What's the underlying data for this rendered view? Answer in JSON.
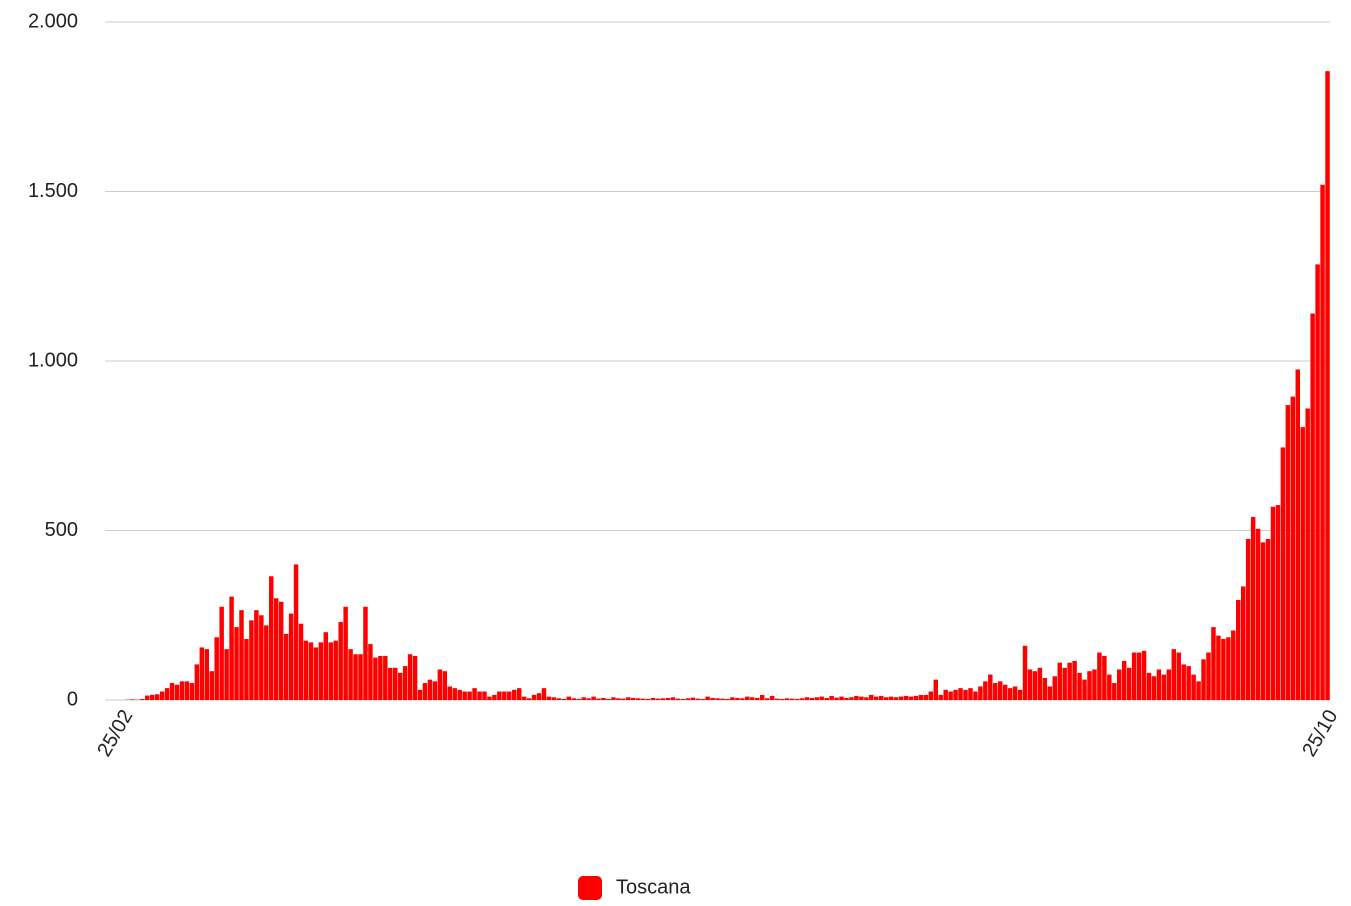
{
  "chart_data": {
    "type": "bar",
    "categories": [
      "25/02",
      null,
      null,
      null,
      null,
      null,
      null,
      null,
      null,
      null,
      null,
      null,
      null,
      null,
      null,
      null,
      null,
      null,
      null,
      null,
      null,
      null,
      null,
      null,
      null,
      null,
      null,
      null,
      null,
      null,
      null,
      null,
      null,
      null,
      null,
      null,
      null,
      null,
      null,
      null,
      null,
      null,
      null,
      null,
      null,
      null,
      null,
      null,
      null,
      null,
      null,
      null,
      null,
      null,
      null,
      null,
      null,
      null,
      null,
      null,
      null,
      null,
      null,
      null,
      null,
      null,
      null,
      null,
      null,
      null,
      null,
      null,
      null,
      null,
      null,
      null,
      null,
      null,
      null,
      null,
      null,
      null,
      null,
      null,
      null,
      null,
      null,
      null,
      null,
      null,
      null,
      null,
      null,
      null,
      null,
      null,
      null,
      null,
      null,
      null,
      null,
      null,
      null,
      null,
      null,
      null,
      null,
      null,
      null,
      null,
      null,
      null,
      null,
      null,
      null,
      null,
      null,
      null,
      null,
      null,
      null,
      null,
      null,
      null,
      null,
      null,
      null,
      null,
      null,
      null,
      null,
      null,
      null,
      null,
      null,
      null,
      null,
      null,
      null,
      null,
      null,
      null,
      null,
      null,
      null,
      null,
      null,
      null,
      null,
      null,
      null,
      null,
      null,
      null,
      null,
      null,
      null,
      null,
      null,
      null,
      null,
      null,
      null,
      null,
      null,
      null,
      null,
      null,
      null,
      null,
      null,
      null,
      null,
      null,
      null,
      null,
      null,
      null,
      null,
      null,
      null,
      null,
      null,
      null,
      null,
      null,
      null,
      null,
      null,
      null,
      null,
      null,
      null,
      null,
      null,
      null,
      null,
      null,
      null,
      null,
      null,
      null,
      null,
      null,
      null,
      null,
      null,
      null,
      null,
      null,
      null,
      null,
      null,
      null,
      null,
      null,
      null,
      null,
      null,
      null,
      null,
      null,
      null,
      null,
      null,
      null,
      null,
      null,
      null,
      null,
      null,
      null,
      null,
      null,
      null,
      null,
      null,
      null,
      null,
      null,
      null,
      null,
      null,
      "25/10"
    ],
    "series": [
      {
        "name": "Toscana",
        "color": "#ff0000",
        "values": [
          0,
          1,
          2,
          1,
          3,
          13,
          15,
          17,
          25,
          35,
          50,
          45,
          55,
          55,
          50,
          105,
          155,
          150,
          85,
          185,
          275,
          150,
          305,
          215,
          265,
          180,
          235,
          265,
          250,
          220,
          365,
          300,
          290,
          195,
          255,
          400,
          225,
          175,
          170,
          155,
          170,
          200,
          170,
          175,
          230,
          275,
          150,
          135,
          135,
          275,
          165,
          125,
          130,
          130,
          95,
          95,
          80,
          100,
          135,
          130,
          30,
          50,
          60,
          55,
          90,
          85,
          40,
          35,
          30,
          25,
          25,
          35,
          25,
          25,
          10,
          15,
          25,
          25,
          25,
          30,
          35,
          10,
          5,
          15,
          20,
          35,
          10,
          8,
          5,
          3,
          10,
          5,
          3,
          8,
          5,
          10,
          4,
          6,
          3,
          8,
          5,
          4,
          8,
          6,
          5,
          4,
          3,
          6,
          4,
          5,
          6,
          8,
          4,
          3,
          5,
          7,
          4,
          3,
          10,
          6,
          5,
          4,
          3,
          8,
          6,
          5,
          10,
          8,
          6,
          15,
          5,
          12,
          4,
          3,
          5,
          4,
          3,
          5,
          8,
          6,
          8,
          10,
          6,
          12,
          7,
          10,
          6,
          8,
          12,
          10,
          8,
          15,
          10,
          12,
          8,
          10,
          8,
          10,
          12,
          10,
          12,
          15,
          15,
          25,
          60,
          15,
          30,
          25,
          30,
          35,
          30,
          35,
          25,
          40,
          55,
          75,
          50,
          55,
          45,
          35,
          40,
          30,
          160,
          90,
          85,
          95,
          65,
          40,
          70,
          110,
          95,
          110,
          115,
          80,
          60,
          85,
          90,
          140,
          130,
          75,
          50,
          90,
          115,
          95,
          140,
          140,
          145,
          80,
          70,
          90,
          75,
          90,
          150,
          140,
          105,
          100,
          75,
          55,
          120,
          140,
          215,
          190,
          180,
          185,
          205,
          295,
          335,
          475,
          540,
          505,
          465,
          475,
          570,
          575,
          745,
          870,
          895,
          975,
          805,
          860,
          1140,
          1285,
          1520,
          1855
        ]
      }
    ],
    "ylim": [
      0,
      2000
    ],
    "yticks": [
      0,
      500,
      {
        "value": 1000,
        "label": "1.000"
      },
      {
        "value": 1500,
        "label": "1.500"
      },
      {
        "value": 2000,
        "label": "2.000"
      }
    ],
    "grid": true,
    "legend": "bottom"
  }
}
